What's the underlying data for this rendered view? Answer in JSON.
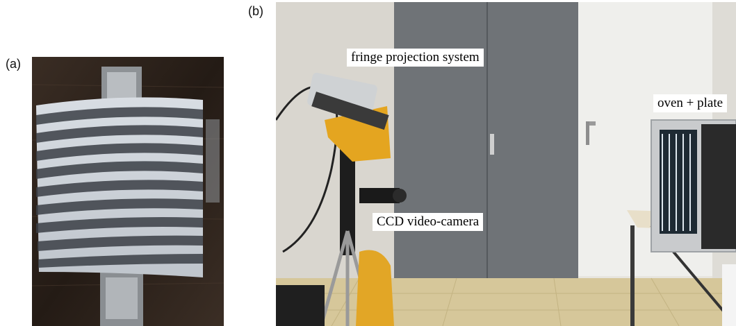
{
  "panels": {
    "a": {
      "label": "(a)"
    },
    "b": {
      "label": "(b)"
    }
  },
  "annotations": {
    "fringe_projection": "fringe projection system",
    "ccd_camera": "CCD video-camera",
    "oven_plate": "oven + plate"
  },
  "colors": {
    "background": "#ffffff",
    "fringe_light": "#e9edf2",
    "wall_dark": "#2e241d",
    "door_gray": "#6f7377",
    "tripod_yellow": "#e4a520"
  }
}
